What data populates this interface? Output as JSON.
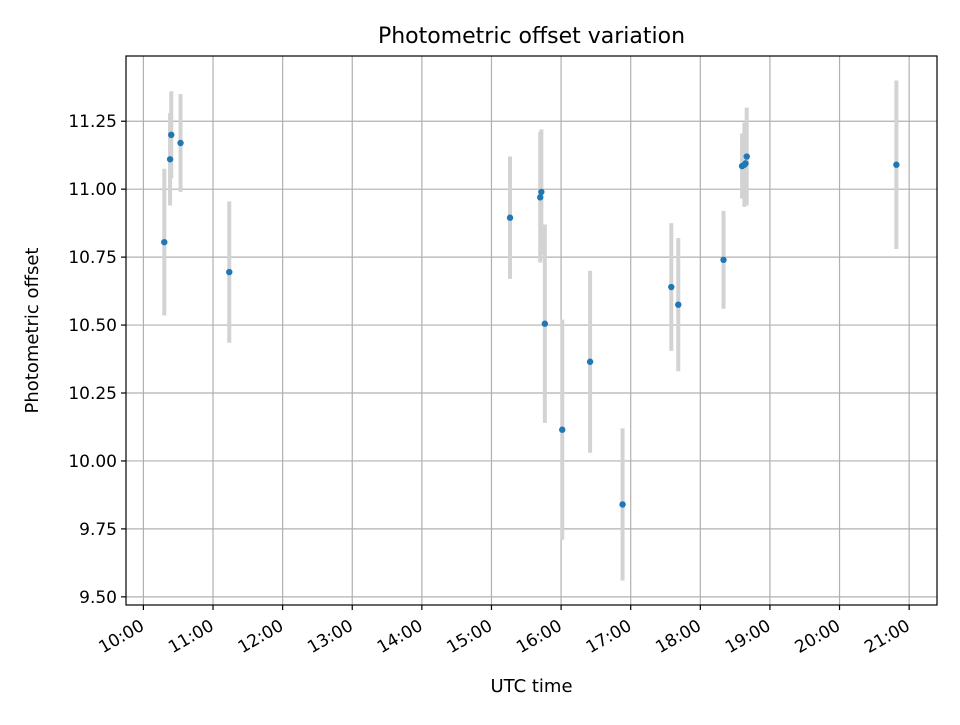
{
  "chart_data": {
    "type": "scatter",
    "title": "Photometric offset variation",
    "xlabel": "UTC time",
    "ylabel": "Photometric offset",
    "x_unit": "UTC time (HH:MM)",
    "xlim": [
      "09:45",
      "21:24"
    ],
    "ylim": [
      9.47,
      11.49
    ],
    "grid": true,
    "error_bar_color": "#d3d3d3",
    "marker_color": "#1f77b4",
    "x_ticks": [
      "10:00",
      "11:00",
      "12:00",
      "13:00",
      "14:00",
      "15:00",
      "16:00",
      "17:00",
      "18:00",
      "19:00",
      "20:00",
      "21:00"
    ],
    "y_ticks": [
      9.5,
      9.75,
      10.0,
      10.25,
      10.5,
      10.75,
      11.0,
      11.25
    ],
    "y_tick_labels": [
      "9.50",
      "9.75",
      "10.00",
      "10.25",
      "10.50",
      "10.75",
      "11.00",
      "11.25"
    ],
    "points": [
      {
        "time": "10:18",
        "y": 10.805,
        "err": 0.27
      },
      {
        "time": "10:23",
        "y": 11.11,
        "err": 0.17
      },
      {
        "time": "10:24",
        "y": 11.2,
        "err": 0.16
      },
      {
        "time": "10:32",
        "y": 11.17,
        "err": 0.18
      },
      {
        "time": "11:14",
        "y": 10.695,
        "err": 0.26
      },
      {
        "time": "15:16",
        "y": 10.895,
        "err": 0.225
      },
      {
        "time": "15:42",
        "y": 10.97,
        "err": 0.24
      },
      {
        "time": "15:43",
        "y": 10.99,
        "err": 0.23
      },
      {
        "time": "15:46",
        "y": 10.505,
        "err": 0.365
      },
      {
        "time": "16:01",
        "y": 10.115,
        "err": 0.405
      },
      {
        "time": "16:25",
        "y": 10.365,
        "err": 0.335
      },
      {
        "time": "16:53",
        "y": 9.84,
        "err": 0.28
      },
      {
        "time": "17:35",
        "y": 10.64,
        "err": 0.235
      },
      {
        "time": "17:41",
        "y": 10.575,
        "err": 0.245
      },
      {
        "time": "18:20",
        "y": 10.74,
        "err": 0.18
      },
      {
        "time": "18:36",
        "y": 11.085,
        "err": 0.12
      },
      {
        "time": "18:38",
        "y": 11.09,
        "err": 0.155
      },
      {
        "time": "18:39",
        "y": 11.095,
        "err": 0.15
      },
      {
        "time": "18:40",
        "y": 11.12,
        "err": 0.18
      },
      {
        "time": "20:49",
        "y": 11.09,
        "err": 0.31
      }
    ]
  }
}
